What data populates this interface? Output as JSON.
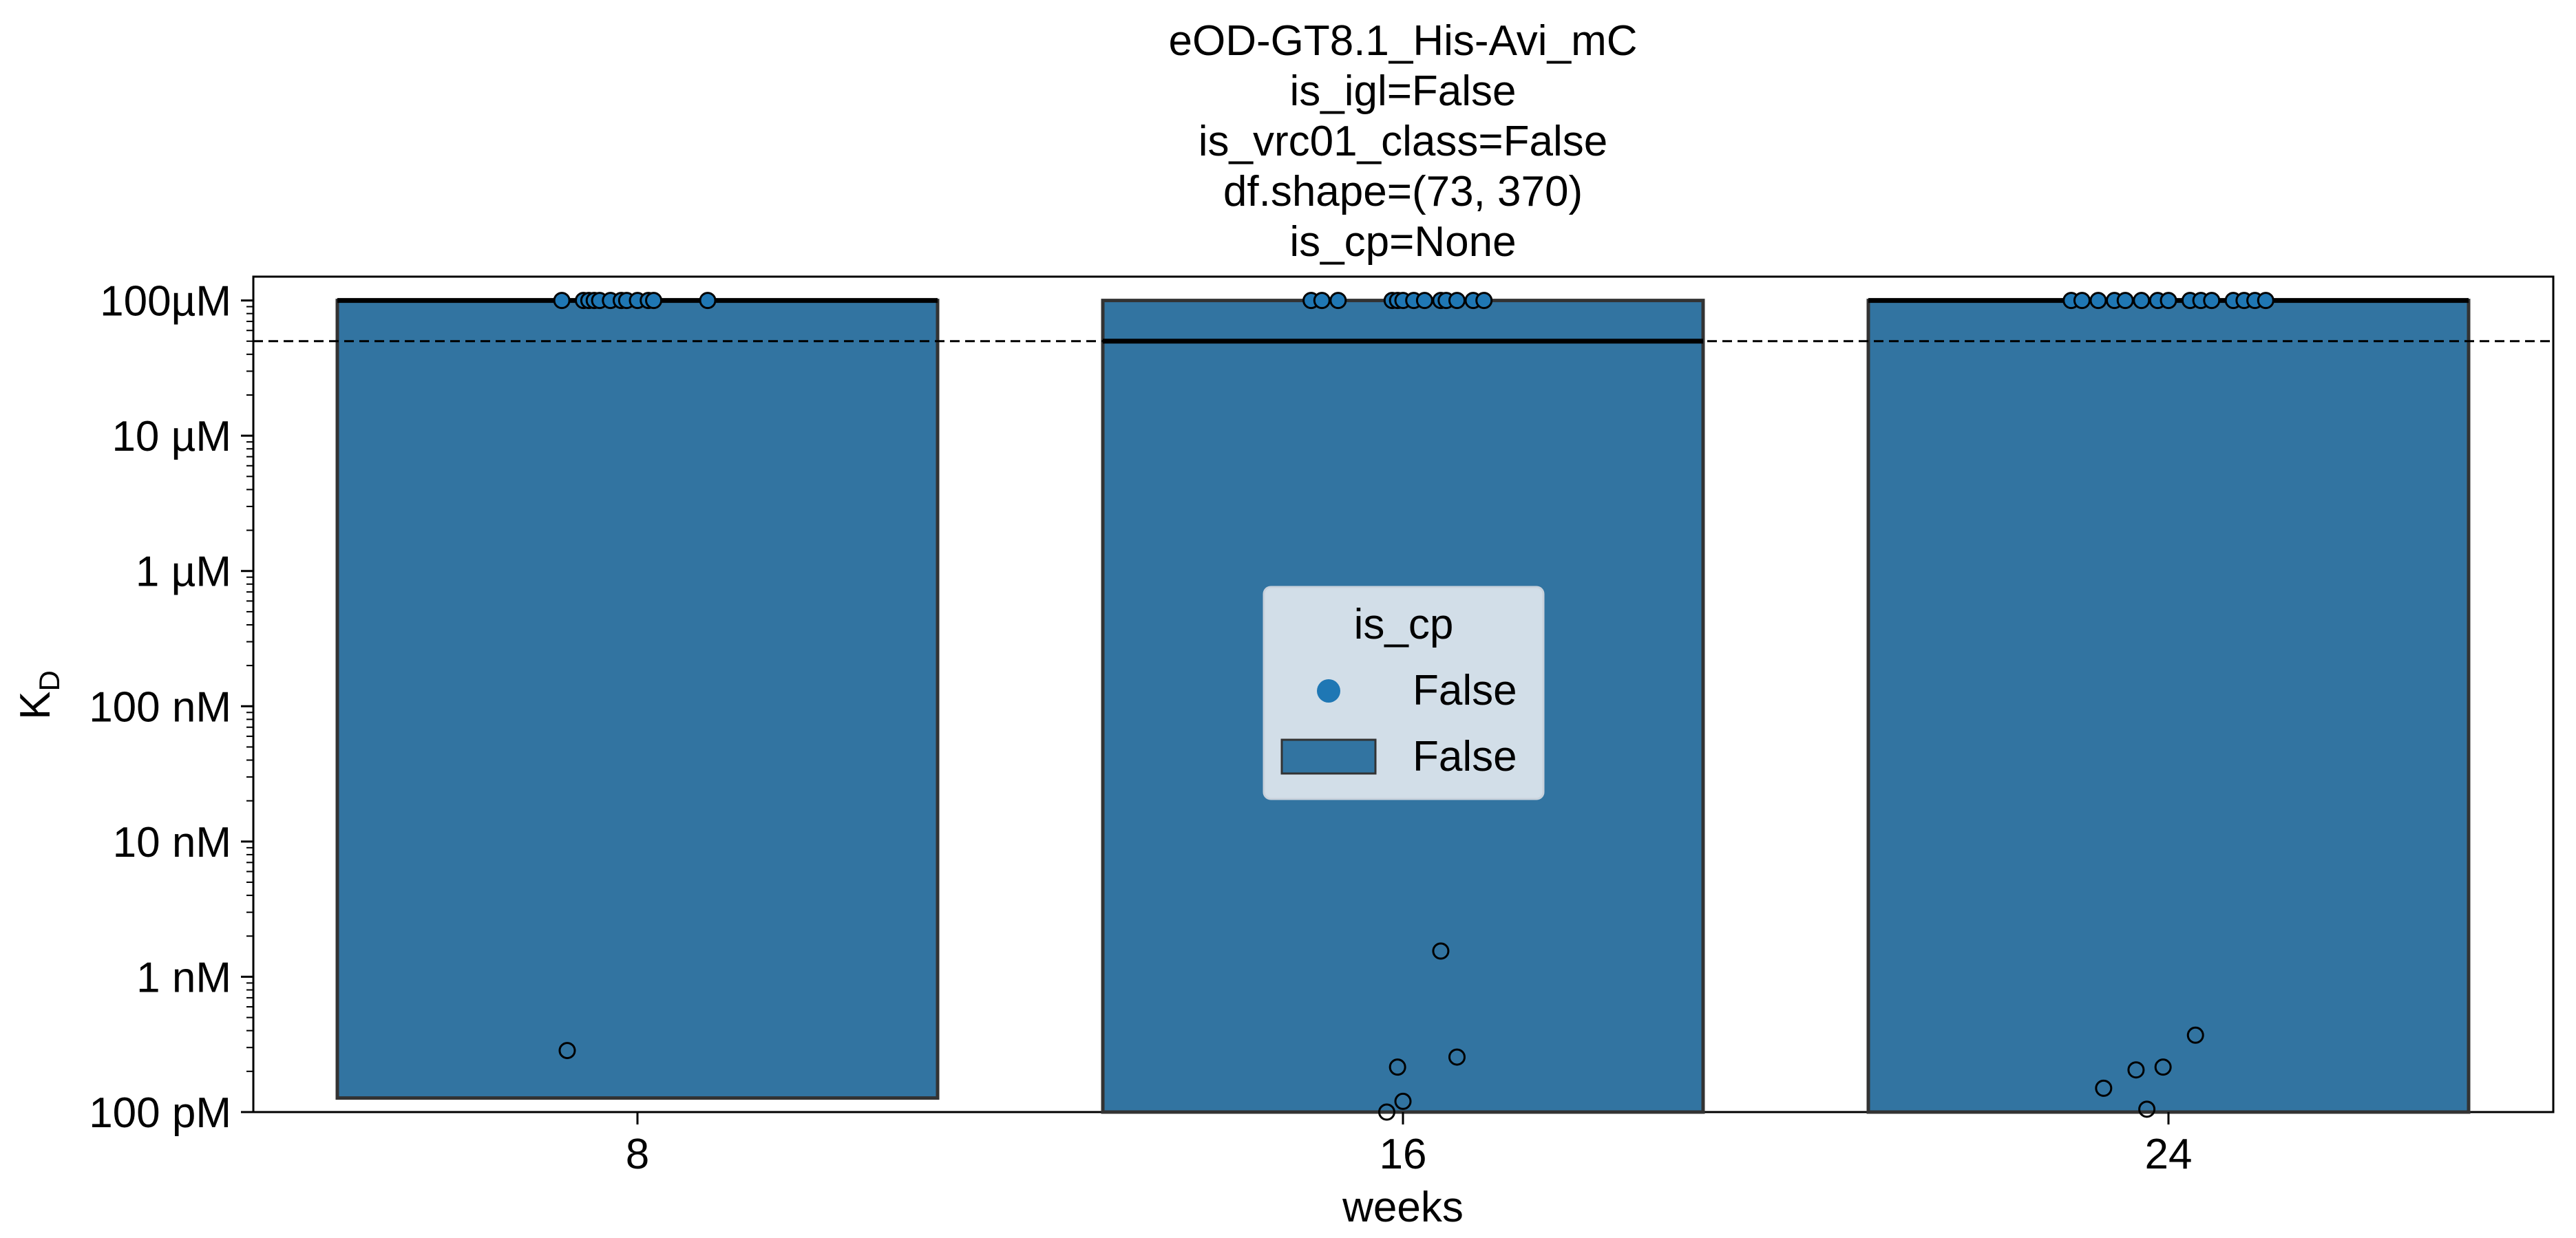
{
  "chart_data": {
    "type": "bar",
    "title_lines": [
      "eOD-GT8.1_His-Avi_mC",
      "is_igl=False",
      "is_vrc01_class=False",
      "df.shape=(73, 370)",
      "is_cp=None"
    ],
    "xlabel": "weeks",
    "ylabel_main": "K",
    "ylabel_sub": "D",
    "y_scale": "log",
    "ylim_molar": [
      1e-10,
      0.00015
    ],
    "y_ticks": [
      {
        "value": 1e-10,
        "label": "100 pM"
      },
      {
        "value": 1e-09,
        "label": "1 nM"
      },
      {
        "value": 1e-08,
        "label": "10 nM"
      },
      {
        "value": 1e-07,
        "label": "100 nM"
      },
      {
        "value": 1e-06,
        "label": "1 µM"
      },
      {
        "value": 1e-05,
        "label": "10 µM"
      },
      {
        "value": 0.0001,
        "label": "100µM"
      }
    ],
    "categories": [
      "8",
      "16",
      "24"
    ],
    "bar_color": "#3274a1",
    "point_color": "#1f77b4",
    "threshold_line": 5e-05,
    "series": [
      {
        "bars": [
          {
            "category": "8",
            "top": 0.0001,
            "bottom": 1.27e-10,
            "median": 0.0001
          },
          {
            "category": "16",
            "top": 0.0001,
            "bottom": 1e-10,
            "median": 5e-05
          },
          {
            "category": "24",
            "top": 0.0001,
            "bottom": 1e-10,
            "median": 0.0001
          }
        ]
      }
    ],
    "points": [
      {
        "category": "8",
        "jitter": [
          -0.14,
          -0.1,
          -0.09,
          -0.08,
          -0.07,
          -0.05,
          -0.03,
          -0.02,
          0.0,
          0.02,
          0.03,
          0.13
        ],
        "value": 0.0001
      },
      {
        "category": "8",
        "jitter": [
          -0.13
        ],
        "value": 2.85e-10
      },
      {
        "category": "16",
        "jitter": [
          -0.17,
          -0.15,
          -0.12,
          -0.02,
          -0.01,
          0.0,
          0.02,
          0.04,
          0.07,
          0.08,
          0.1,
          0.13,
          0.15
        ],
        "value": 0.0001
      },
      {
        "category": "16",
        "jitter": [
          0.07
        ],
        "value": 1.55e-09
      },
      {
        "category": "16",
        "jitter": [
          0.1
        ],
        "value": 2.55e-10
      },
      {
        "category": "16",
        "jitter": [
          -0.01
        ],
        "value": 2.15e-10
      },
      {
        "category": "16",
        "jitter": [
          0.0
        ],
        "value": 1.2e-10
      },
      {
        "category": "16",
        "jitter": [
          -0.03
        ],
        "value": 1e-10
      },
      {
        "category": "24",
        "jitter": [
          -0.18,
          -0.16,
          -0.13,
          -0.1,
          -0.08,
          -0.05,
          -0.02,
          0.0,
          0.04,
          0.06,
          0.08,
          0.12,
          0.14,
          0.16,
          0.18
        ],
        "value": 0.0001
      },
      {
        "category": "24",
        "jitter": [
          0.05
        ],
        "value": 3.7e-10
      },
      {
        "category": "24",
        "jitter": [
          -0.06
        ],
        "value": 2.05e-10
      },
      {
        "category": "24",
        "jitter": [
          -0.01
        ],
        "value": 2.15e-10
      },
      {
        "category": "24",
        "jitter": [
          -0.12
        ],
        "value": 1.5e-10
      },
      {
        "category": "24",
        "jitter": [
          -0.04
        ],
        "value": 1.05e-10
      }
    ],
    "legend": {
      "title": "is_cp",
      "placement": "center",
      "entries": [
        {
          "kind": "point",
          "label": "False"
        },
        {
          "kind": "bar",
          "label": "False"
        }
      ]
    },
    "grid": false
  }
}
